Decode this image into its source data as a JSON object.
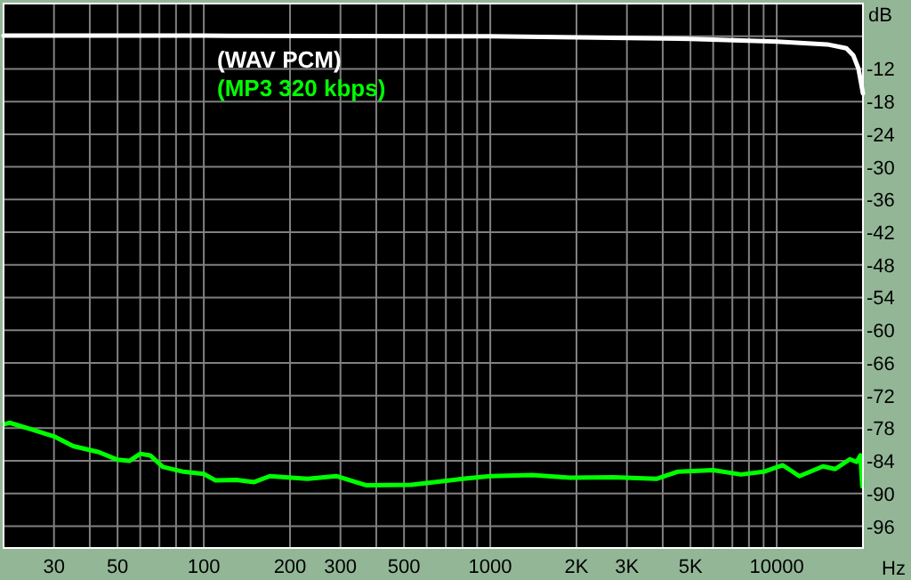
{
  "chart_data": {
    "type": "line",
    "xlabel": "Hz",
    "ylabel": "dB",
    "log": "x",
    "grid": true,
    "legend": "top left",
    "line_style": "solid",
    "marker": "none",
    "xlim": [
      20,
      20000
    ],
    "ylim": [
      -100,
      0
    ],
    "xticks": [
      {
        "value": 20,
        "label": null
      },
      30,
      {
        "value": 40,
        "label": null
      },
      50,
      {
        "value": 60,
        "label": null
      },
      {
        "value": 70,
        "label": null
      },
      {
        "value": 80,
        "label": null
      },
      {
        "value": 90,
        "label": null
      },
      100,
      200,
      300,
      {
        "value": 400,
        "label": null
      },
      500,
      {
        "value": 600,
        "label": null
      },
      {
        "value": 700,
        "label": null
      },
      {
        "value": 800,
        "label": null
      },
      {
        "value": 900,
        "label": null
      },
      1000,
      {
        "value": 2000,
        "label": "2K"
      },
      {
        "value": 3000,
        "label": "3K"
      },
      {
        "value": 4000,
        "label": null
      },
      {
        "value": 5000,
        "label": "5K"
      },
      {
        "value": 6000,
        "label": null
      },
      {
        "value": 7000,
        "label": null
      },
      {
        "value": 8000,
        "label": null
      },
      {
        "value": 9000,
        "label": null
      },
      10000,
      {
        "value": 20000,
        "label": null
      }
    ],
    "yticks": [
      {
        "value": -6,
        "label": null
      },
      -12,
      -18,
      -24,
      -30,
      -36,
      -42,
      -48,
      -54,
      -60,
      -66,
      -72,
      -78,
      -84,
      -90,
      -96
    ],
    "series": [
      {
        "name": "(WAV PCM)",
        "color": "#ffffff",
        "x": [
          20,
          100,
          1000,
          5000,
          10000,
          15000,
          17500,
          18500,
          19300,
          20000
        ],
        "values": [
          -5.9,
          -5.9,
          -6,
          -6.5,
          -7,
          -7.5,
          -8.2,
          -9.5,
          -12,
          -16.5
        ]
      },
      {
        "name": "(MP3 320 kbps)",
        "color": "#00ff00",
        "x": [
          20,
          21,
          25,
          30,
          35,
          43,
          50,
          55,
          60,
          65,
          72,
          85,
          100,
          110,
          130,
          150,
          170,
          230,
          290,
          370,
          530,
          800,
          1000,
          1400,
          1900,
          2700,
          3800,
          4500,
          6000,
          7500,
          9000,
          10500,
          12000,
          14500,
          16000,
          18000,
          19000,
          19600,
          19900
        ],
        "values": [
          -77.3,
          -77,
          -78.2,
          -79.5,
          -81.3,
          -82.4,
          -83.8,
          -84,
          -82.7,
          -83,
          -85.1,
          -86,
          -86.4,
          -87.6,
          -87.5,
          -87.9,
          -86.8,
          -87.3,
          -86.8,
          -88.5,
          -88.4,
          -87.3,
          -86.8,
          -86.6,
          -87.1,
          -87,
          -87.3,
          -86,
          -85.7,
          -86.5,
          -86,
          -84.8,
          -86.8,
          -85,
          -85.5,
          -83.7,
          -84.2,
          -83,
          -88.7
        ]
      }
    ]
  }
}
